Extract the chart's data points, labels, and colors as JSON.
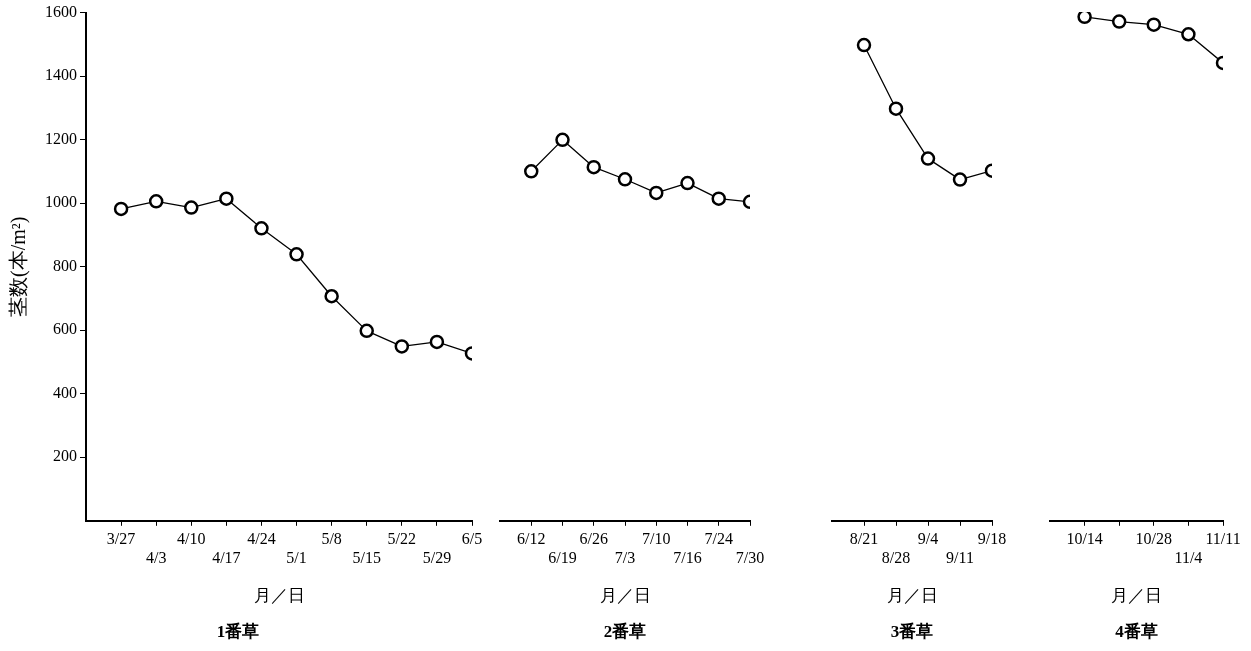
{
  "chart_data": [
    {
      "type": "line",
      "title": "1番草",
      "xlabel": "月／日",
      "ylabel": "茎数(本/m²)",
      "categories": [
        "3/27",
        "4/3",
        "4/10",
        "4/17",
        "4/24",
        "5/1",
        "5/8",
        "5/15",
        "5/22",
        "5/29",
        "6/5"
      ],
      "values": [
        982,
        1006,
        986,
        1014,
        921,
        839,
        707,
        598,
        549,
        563,
        527
      ],
      "color": "#000000",
      "marker": "circle",
      "ylim": [
        0,
        1600
      ],
      "yticks": [
        200,
        400,
        600,
        800,
        1000,
        1200,
        1400,
        1600
      ],
      "grid": false
    },
    {
      "type": "line",
      "title": "2番草",
      "xlabel": "月／日",
      "categories": [
        "6/12",
        "6/19",
        "6/26",
        "7/3",
        "7/10",
        "7/16",
        "7/24",
        "7/30"
      ],
      "values": [
        1099,
        1198,
        1112,
        1074,
        1031,
        1062,
        1013,
        1003
      ],
      "color": "#000000",
      "marker": "circle",
      "ylim": [
        0,
        1600
      ],
      "yticks": [
        200,
        400,
        600,
        800,
        1000,
        1200,
        1400,
        1600
      ],
      "tick_labels": "x",
      "grid": false
    },
    {
      "type": "line",
      "title": "3番草",
      "xlabel": "月／日",
      "categories": [
        "8/21",
        "8/28",
        "9/4",
        "9/11",
        "9/18"
      ],
      "values": [
        1496,
        1296,
        1139,
        1073,
        1101
      ],
      "color": "#000000",
      "marker": "circle",
      "ylim": [
        0,
        1600
      ],
      "yticks": [
        200,
        400,
        600,
        800,
        1000,
        1200,
        1400,
        1600
      ],
      "tick_labels": "x",
      "grid": false
    },
    {
      "type": "line",
      "title": "4番草",
      "xlabel": "月／日",
      "categories": [
        "10/14",
        null,
        "10/28",
        "11/4",
        "11/11"
      ],
      "values": [
        1585,
        1570,
        1560,
        1530,
        1440
      ],
      "color": "#000000",
      "marker": "circle",
      "ylim": [
        0,
        1600
      ],
      "yticks": [
        200,
        400,
        600,
        800,
        1000,
        1200,
        1400,
        1600
      ],
      "tick_labels": "x",
      "grid": false
    }
  ]
}
